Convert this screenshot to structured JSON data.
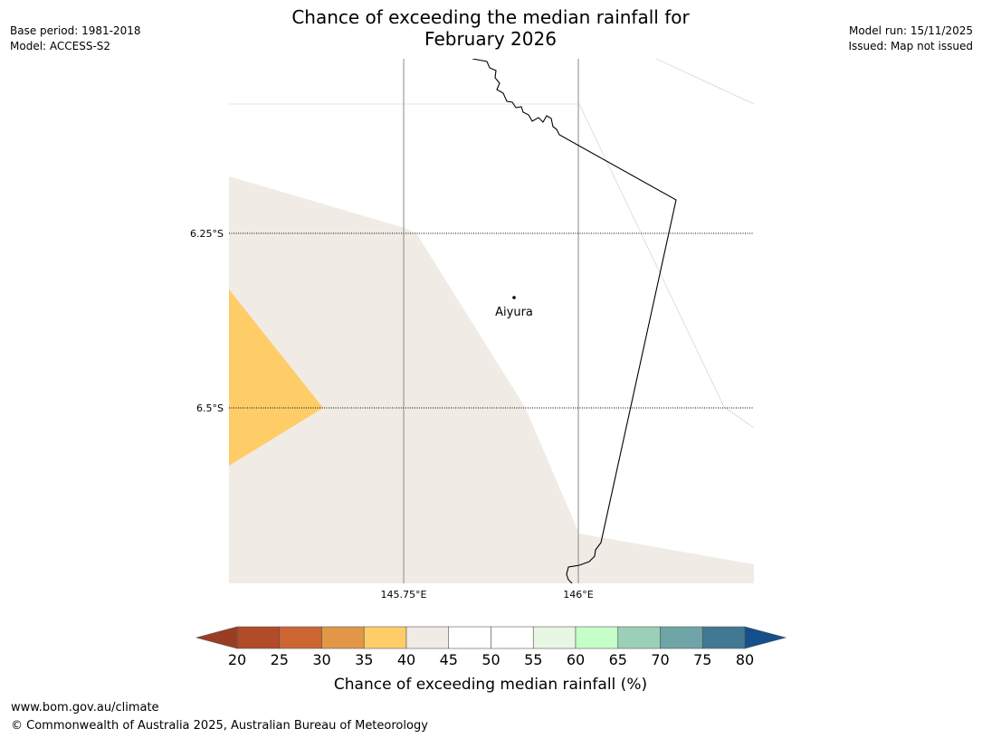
{
  "title": {
    "line1": "Chance of exceeding the median rainfall for",
    "line2": "February 2026"
  },
  "meta_left": {
    "base_period": "Base period: 1981-2018",
    "model": "Model: ACCESS-S2"
  },
  "meta_right": {
    "model_run": "Model run: 15/11/2025",
    "issued": "Issued: Map not issued"
  },
  "map": {
    "place_label": "Aiyura",
    "lat_labels": [
      "6.25°S",
      "6.5°S"
    ],
    "lon_labels": [
      "145.75°E",
      "146°E"
    ]
  },
  "colorbar": {
    "title": "Chance of exceeding median rainfall (%)",
    "ticks": [
      "20",
      "25",
      "30",
      "35",
      "40",
      "45",
      "50",
      "55",
      "60",
      "65",
      "70",
      "75",
      "80"
    ],
    "bins": [
      {
        "range": "<20",
        "color": "#9b3d24"
      },
      {
        "range": "20-25",
        "color": "#b24b27"
      },
      {
        "range": "25-30",
        "color": "#cc6532"
      },
      {
        "range": "30-35",
        "color": "#e29748"
      },
      {
        "range": "35-40",
        "color": "#fecd68"
      },
      {
        "range": "40-45",
        "color": "#f0ebe5"
      },
      {
        "range": "45-50",
        "color": "#ffffff"
      },
      {
        "range": "50-55",
        "color": "#ffffff"
      },
      {
        "range": "55-60",
        "color": "#e8f6e4"
      },
      {
        "range": "60-65",
        "color": "#c6fec9"
      },
      {
        "range": "65-70",
        "color": "#9ccfb8"
      },
      {
        "range": "70-75",
        "color": "#6fa5a6"
      },
      {
        "range": "75-80",
        "color": "#417894"
      },
      {
        "range": ">80",
        "color": "#14508a"
      }
    ]
  },
  "footer": {
    "url": "www.bom.gov.au/climate",
    "copyright": "© Commonwealth of Australia 2025, Australian Bureau of Meteorology"
  }
}
